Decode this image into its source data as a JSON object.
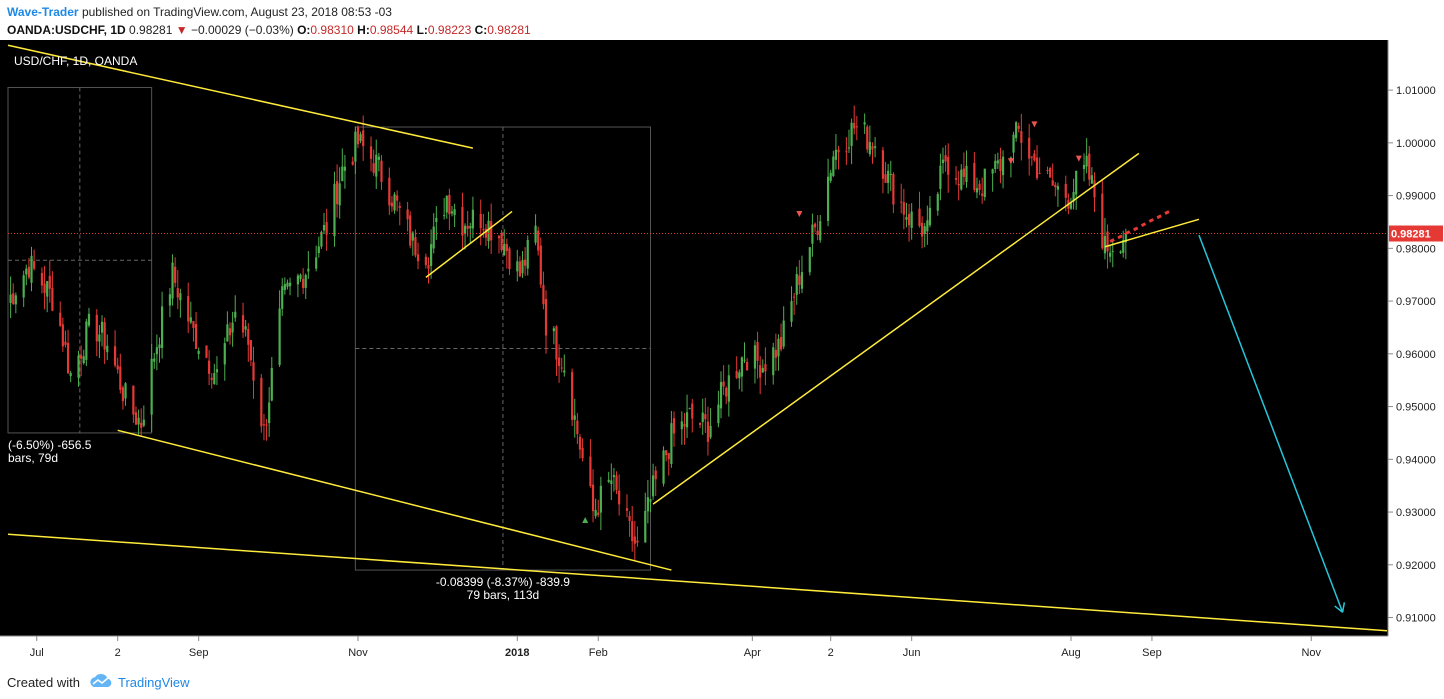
{
  "header": {
    "author": "Wave-Trader",
    "published_text": "published on TradingView.com, August 23, 2018 08:53 -03",
    "symbol": "OANDA:USDCHF, 1D",
    "last": "0.98281",
    "change": "−0.00029 (−0.03%)",
    "o_label": "O:",
    "o_value": "0.98310",
    "h_label": "H:",
    "h_value": "0.98544",
    "l_label": "L:",
    "l_value": "0.98223",
    "c_label": "C:",
    "c_value": "0.98281"
  },
  "chart_data": {
    "type": "candlestick",
    "title": "USD/CHF, 1D, OANDA",
    "y_axis": {
      "ylim": [
        0.9065,
        1.0195
      ],
      "ticks": [
        "1.01000",
        "1.00000",
        "0.99000",
        "0.98000",
        "0.97000",
        "0.96000",
        "0.95000",
        "0.94000",
        "0.93000",
        "0.92000",
        "0.91000"
      ],
      "tick_values": [
        1.01,
        1.0,
        0.99,
        0.98,
        0.97,
        0.96,
        0.95,
        0.94,
        0.93,
        0.92,
        0.91
      ],
      "last_price_label": "0.98281",
      "last_price": 0.98281
    },
    "x_axis": {
      "labels": [
        "Jul",
        "2",
        "Sep",
        "Nov",
        "2018",
        "Feb",
        "Apr",
        "2",
        "Jun",
        "Aug",
        "Sep",
        "Nov"
      ],
      "label_dates": [
        "2017-07-01",
        "2017-08-01",
        "2017-09-01",
        "2017-11-01",
        "2018-01-01",
        "2018-02-01",
        "2018-04-01",
        "2018-05-01",
        "2018-06-01",
        "2018-08-01",
        "2018-09-01",
        "2018-11-01"
      ],
      "bold_labels": [
        "2018"
      ]
    },
    "price_path": [
      [
        "2017-06-20",
        0.97
      ],
      [
        "2017-06-28",
        0.977
      ],
      [
        "2017-07-08",
        0.97
      ],
      [
        "2017-07-14",
        0.956
      ],
      [
        "2017-07-22",
        0.966
      ],
      [
        "2017-07-28",
        0.962
      ],
      [
        "2017-08-05",
        0.95
      ],
      [
        "2017-08-10",
        0.947
      ],
      [
        "2017-08-15",
        0.96
      ],
      [
        "2017-08-22",
        0.975
      ],
      [
        "2017-08-30",
        0.964
      ],
      [
        "2017-09-08",
        0.956
      ],
      [
        "2017-09-15",
        0.968
      ],
      [
        "2017-09-20",
        0.962
      ],
      [
        "2017-09-26",
        0.945
      ],
      [
        "2017-10-03",
        0.97
      ],
      [
        "2017-10-12",
        0.976
      ],
      [
        "2017-10-20",
        0.984
      ],
      [
        "2017-10-26",
        0.995
      ],
      [
        "2017-11-01",
        1.0
      ],
      [
        "2017-11-08",
        0.996
      ],
      [
        "2017-11-15",
        0.989
      ],
      [
        "2017-11-22",
        0.981
      ],
      [
        "2017-11-28",
        0.979
      ],
      [
        "2017-12-05",
        0.99
      ],
      [
        "2017-12-11",
        0.985
      ],
      [
        "2017-12-18",
        0.986
      ],
      [
        "2017-12-26",
        0.982
      ],
      [
        "2018-01-02",
        0.975
      ],
      [
        "2018-01-08",
        0.983
      ],
      [
        "2018-01-12",
        0.966
      ],
      [
        "2018-01-19",
        0.958
      ],
      [
        "2018-01-26",
        0.94
      ],
      [
        "2018-01-30",
        0.93
      ],
      [
        "2018-02-06",
        0.936
      ],
      [
        "2018-02-13",
        0.926
      ],
      [
        "2018-02-16",
        0.923
      ],
      [
        "2018-02-22",
        0.934
      ],
      [
        "2018-03-01",
        0.944
      ],
      [
        "2018-03-08",
        0.948
      ],
      [
        "2018-03-15",
        0.946
      ],
      [
        "2018-03-22",
        0.954
      ],
      [
        "2018-03-29",
        0.96
      ],
      [
        "2018-04-05",
        0.958
      ],
      [
        "2018-04-12",
        0.962
      ],
      [
        "2018-04-19",
        0.975
      ],
      [
        "2018-04-26",
        0.985
      ],
      [
        "2018-05-02",
        0.998
      ],
      [
        "2018-05-10",
        1.003
      ],
      [
        "2018-05-18",
        1.0
      ],
      [
        "2018-05-24",
        0.992
      ],
      [
        "2018-05-31",
        0.986
      ],
      [
        "2018-06-07",
        0.983
      ],
      [
        "2018-06-14",
        0.997
      ],
      [
        "2018-06-21",
        0.993
      ],
      [
        "2018-06-28",
        0.992
      ],
      [
        "2018-07-05",
        0.996
      ],
      [
        "2018-07-12",
        1.002
      ],
      [
        "2018-07-17",
        0.997
      ],
      [
        "2018-07-24",
        0.992
      ],
      [
        "2018-07-31",
        0.99
      ],
      [
        "2018-08-07",
        0.995
      ],
      [
        "2018-08-10",
        0.99
      ],
      [
        "2018-08-14",
        0.98
      ],
      [
        "2018-08-22",
        0.98281
      ]
    ],
    "drawings": {
      "trendlines": [
        {
          "from": [
            "2017-06-20",
            1.0185
          ],
          "to": [
            "2017-12-15",
            0.999
          ]
        },
        {
          "from": [
            "2017-11-27",
            0.9745
          ],
          "to": [
            "2017-12-30",
            0.987
          ]
        },
        {
          "from": [
            "2017-06-20",
            0.9258
          ],
          "to": [
            "2018-11-30",
            0.9075
          ]
        },
        {
          "from": [
            "2017-08-01",
            0.9455
          ],
          "to": [
            "2018-03-01",
            0.919
          ]
        },
        {
          "from": [
            "2018-02-22",
            0.9315
          ],
          "to": [
            "2018-08-27",
            0.998
          ]
        },
        {
          "from": [
            "2018-08-14",
            0.9803
          ],
          "to": [
            "2018-09-19",
            0.9855
          ]
        }
      ],
      "projection_arrow": {
        "from": [
          "2018-09-19",
          0.9825
        ],
        "to": [
          "2018-11-13",
          0.911
        ]
      },
      "measure_boxes": [
        {
          "from": [
            "2017-06-20",
            1.0105
          ],
          "to": [
            "2017-08-14",
            0.945
          ],
          "label_line1": "(-6.50%) -656.5",
          "label_line2": "bars, 79d"
        },
        {
          "from": [
            "2017-10-31",
            1.003
          ],
          "to": [
            "2018-02-21",
            0.919
          ],
          "label_line1": "-0.08399 (-8.37%) -839.9",
          "label_line2": "79 bars, 113d"
        }
      ],
      "forecast_dashes": [
        [
          "2018-08-16",
          0.9813
        ],
        [
          "2018-08-19",
          0.982
        ],
        [
          "2018-08-22",
          0.9828
        ],
        [
          "2018-08-25",
          0.9835
        ],
        [
          "2018-08-28",
          0.9843
        ],
        [
          "2018-08-31",
          0.9851
        ],
        [
          "2018-09-03",
          0.9858
        ],
        [
          "2018-09-06",
          0.9866
        ]
      ],
      "markers": [
        {
          "date": "2018-01-27",
          "price": 0.9285,
          "kind": "up",
          "color": "#4caf50"
        },
        {
          "date": "2018-04-19",
          "price": 0.9865,
          "kind": "down",
          "color": "#ef5350"
        },
        {
          "date": "2018-07-09",
          "price": 0.9965,
          "kind": "down",
          "color": "#ef5350"
        },
        {
          "date": "2018-07-18",
          "price": 1.0035,
          "kind": "down",
          "color": "#ef5350"
        },
        {
          "date": "2018-08-04",
          "price": 0.997,
          "kind": "down",
          "color": "#ef5350"
        }
      ]
    },
    "colors": {
      "background": "#000000",
      "up_candle": "#4caf50",
      "down_candle": "#e53935",
      "trendline": "#ffeb3b",
      "arrow": "#26c6da",
      "last_price": "#e53935",
      "measure_box": "#555555"
    }
  },
  "footer": {
    "created_with": "Created with",
    "brand": "TradingView"
  }
}
